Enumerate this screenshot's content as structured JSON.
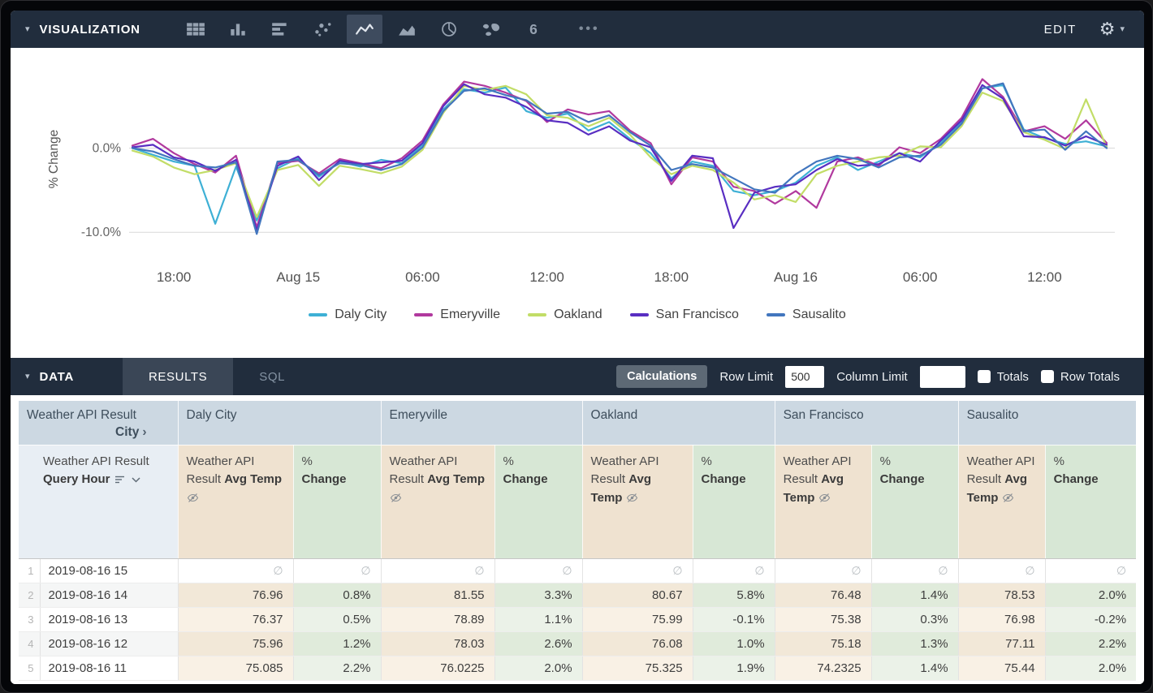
{
  "icons": {
    "caret_down": "▾",
    "settings": "⚙",
    "pivot_arrow": "›"
  },
  "viz_toolbar": {
    "title": "VISUALIZATION",
    "edit_label": "EDIT",
    "more_label": "•••",
    "viz_types": [
      {
        "name": "table"
      },
      {
        "name": "column-chart"
      },
      {
        "name": "bar-chart"
      },
      {
        "name": "scatter"
      },
      {
        "name": "line-chart",
        "selected": true
      },
      {
        "name": "area-chart"
      },
      {
        "name": "pie-chart"
      },
      {
        "name": "map"
      },
      {
        "name": "single-value"
      }
    ]
  },
  "chart_data": {
    "type": "line",
    "title": "",
    "ylabel": "% Change",
    "y_ticks": [
      "0.0%",
      "-10.0%"
    ],
    "grid_values": [
      0,
      -10
    ],
    "ylim": [
      -12.2,
      9.6
    ],
    "legend_position": "bottom",
    "x_tick_labels": [
      "18:00",
      "Aug 15",
      "06:00",
      "12:00",
      "18:00",
      "Aug 16",
      "06:00",
      "12:00"
    ],
    "x_tick_indices": [
      2,
      8,
      14,
      20,
      26,
      32,
      38,
      44
    ],
    "series": [
      {
        "name": "Daly City",
        "color": "#3EB0D5",
        "values": [
          0.0,
          -0.8,
          -1.6,
          -2.1,
          -9.0,
          -2.2,
          -8.6,
          -2.4,
          -1.2,
          -3.4,
          -1.6,
          -2.2,
          -1.4,
          -1.8,
          0.4,
          4.6,
          7.0,
          6.6,
          7.2,
          4.4,
          3.6,
          4.1,
          2.1,
          3.1,
          1.1,
          -0.6,
          -3.6,
          -1.6,
          -2.1,
          -5.1,
          -5.6,
          -5.1,
          -4.1,
          -2.1,
          -1.1,
          -2.6,
          -1.6,
          -0.6,
          -1.1,
          0.6,
          3.1,
          7.1,
          7.5,
          2.2,
          1.2,
          0.5,
          0.8,
          0.2
        ]
      },
      {
        "name": "Emeryville",
        "color": "#B1399E",
        "values": [
          0.3,
          1.1,
          -0.6,
          -1.9,
          -2.9,
          -0.9,
          -9.4,
          -1.8,
          -1.5,
          -3.0,
          -1.3,
          -1.8,
          -2.4,
          -1.2,
          0.9,
          5.2,
          7.9,
          7.4,
          6.6,
          5.6,
          3.1,
          4.6,
          4.0,
          4.4,
          2.1,
          0.6,
          -4.3,
          -1.1,
          -1.6,
          -4.6,
          -5.1,
          -6.6,
          -5.1,
          -7.1,
          -1.6,
          -1.1,
          -2.1,
          0.1,
          -0.6,
          1.1,
          3.6,
          8.2,
          6.1,
          2.0,
          2.6,
          1.1,
          3.3,
          0.6
        ]
      },
      {
        "name": "Oakland",
        "color": "#C2DD67",
        "values": [
          -0.3,
          -1.0,
          -2.3,
          -3.1,
          -2.6,
          -1.8,
          -8.2,
          -2.6,
          -2.0,
          -4.5,
          -2.1,
          -2.5,
          -3.0,
          -2.2,
          -0.2,
          4.2,
          7.4,
          6.9,
          7.4,
          6.4,
          3.9,
          3.6,
          2.6,
          3.6,
          1.6,
          -1.1,
          -3.1,
          -2.1,
          -2.6,
          -4.1,
          -6.1,
          -5.6,
          -6.4,
          -3.1,
          -2.1,
          -1.6,
          -1.1,
          -0.9,
          0.2,
          0.1,
          2.6,
          6.6,
          5.6,
          1.9,
          1.0,
          -0.1,
          5.8,
          0.1
        ]
      },
      {
        "name": "San Francisco",
        "color": "#592EC2",
        "values": [
          0.1,
          0.4,
          -1.1,
          -1.6,
          -2.7,
          -1.4,
          -9.8,
          -2.1,
          -1.0,
          -3.8,
          -1.5,
          -1.9,
          -1.7,
          -1.5,
          0.6,
          5.0,
          7.6,
          6.4,
          6.0,
          4.9,
          3.3,
          3.0,
          1.6,
          2.6,
          0.9,
          0.1,
          -3.9,
          -0.9,
          -1.2,
          -9.5,
          -5.3,
          -4.6,
          -4.3,
          -2.6,
          -1.3,
          -2.1,
          -1.9,
          -0.6,
          -1.6,
          0.9,
          3.3,
          7.5,
          5.9,
          1.4,
          1.3,
          0.3,
          1.4,
          0.4
        ]
      },
      {
        "name": "Sausalito",
        "color": "#4276BE",
        "values": [
          0.0,
          -0.4,
          -1.3,
          -2.1,
          -2.3,
          -1.7,
          -10.2,
          -1.6,
          -1.4,
          -3.2,
          -1.8,
          -2.0,
          -2.6,
          -1.9,
          0.1,
          4.4,
          6.8,
          7.1,
          6.3,
          5.7,
          4.1,
          4.3,
          3.1,
          3.9,
          1.9,
          0.3,
          -2.6,
          -1.9,
          -2.3,
          -3.6,
          -4.9,
          -5.3,
          -3.1,
          -1.6,
          -0.9,
          -1.3,
          -2.3,
          -1.1,
          -0.9,
          0.4,
          2.9,
          7.1,
          7.7,
          2.0,
          2.2,
          -0.2,
          2.0,
          0.0
        ]
      }
    ]
  },
  "data_toolbar": {
    "title": "DATA",
    "tabs": [
      {
        "label": "RESULTS",
        "active": true
      },
      {
        "label": "SQL",
        "active": false
      }
    ],
    "calculations_label": "Calculations",
    "row_limit_label": "Row Limit",
    "row_limit_value": "500",
    "column_limit_label": "Column Limit",
    "column_limit_value": "",
    "totals_label": "Totals",
    "row_totals_label": "Row Totals"
  },
  "table": {
    "pivot_header": {
      "dimension_label": "Weather API Result",
      "pivot_field": "City"
    },
    "row_header": {
      "prefix": "Weather API Result",
      "bold": "Query Hour"
    },
    "cities": [
      "Daly City",
      "Emeryville",
      "Oakland",
      "San Francisco",
      "Sausalito"
    ],
    "measure_label": {
      "prefix": "Weather API Result",
      "bold": "Avg Temp"
    },
    "pct_label": {
      "prefix": "%",
      "bold": "Change"
    },
    "null_symbol": "∅",
    "rows": [
      {
        "num": "1",
        "hour": "2019-08-16 15",
        "cells": [
          "∅",
          "∅",
          "∅",
          "∅",
          "∅",
          "∅",
          "∅",
          "∅",
          "∅",
          "∅"
        ]
      },
      {
        "num": "2",
        "hour": "2019-08-16 14",
        "cells": [
          "76.96",
          "0.8%",
          "81.55",
          "3.3%",
          "80.67",
          "5.8%",
          "76.48",
          "1.4%",
          "78.53",
          "2.0%"
        ]
      },
      {
        "num": "3",
        "hour": "2019-08-16 13",
        "cells": [
          "76.37",
          "0.5%",
          "78.89",
          "1.1%",
          "75.99",
          "-0.1%",
          "75.38",
          "0.3%",
          "76.98",
          "-0.2%"
        ]
      },
      {
        "num": "4",
        "hour": "2019-08-16 12",
        "cells": [
          "75.96",
          "1.2%",
          "78.03",
          "2.6%",
          "76.08",
          "1.0%",
          "75.18",
          "1.3%",
          "77.11",
          "2.2%"
        ]
      },
      {
        "num": "5",
        "hour": "2019-08-16 11",
        "cells": [
          "75.085",
          "2.2%",
          "76.0225",
          "2.0%",
          "75.325",
          "1.9%",
          "74.2325",
          "1.4%",
          "75.44",
          "2.0%"
        ]
      }
    ]
  }
}
